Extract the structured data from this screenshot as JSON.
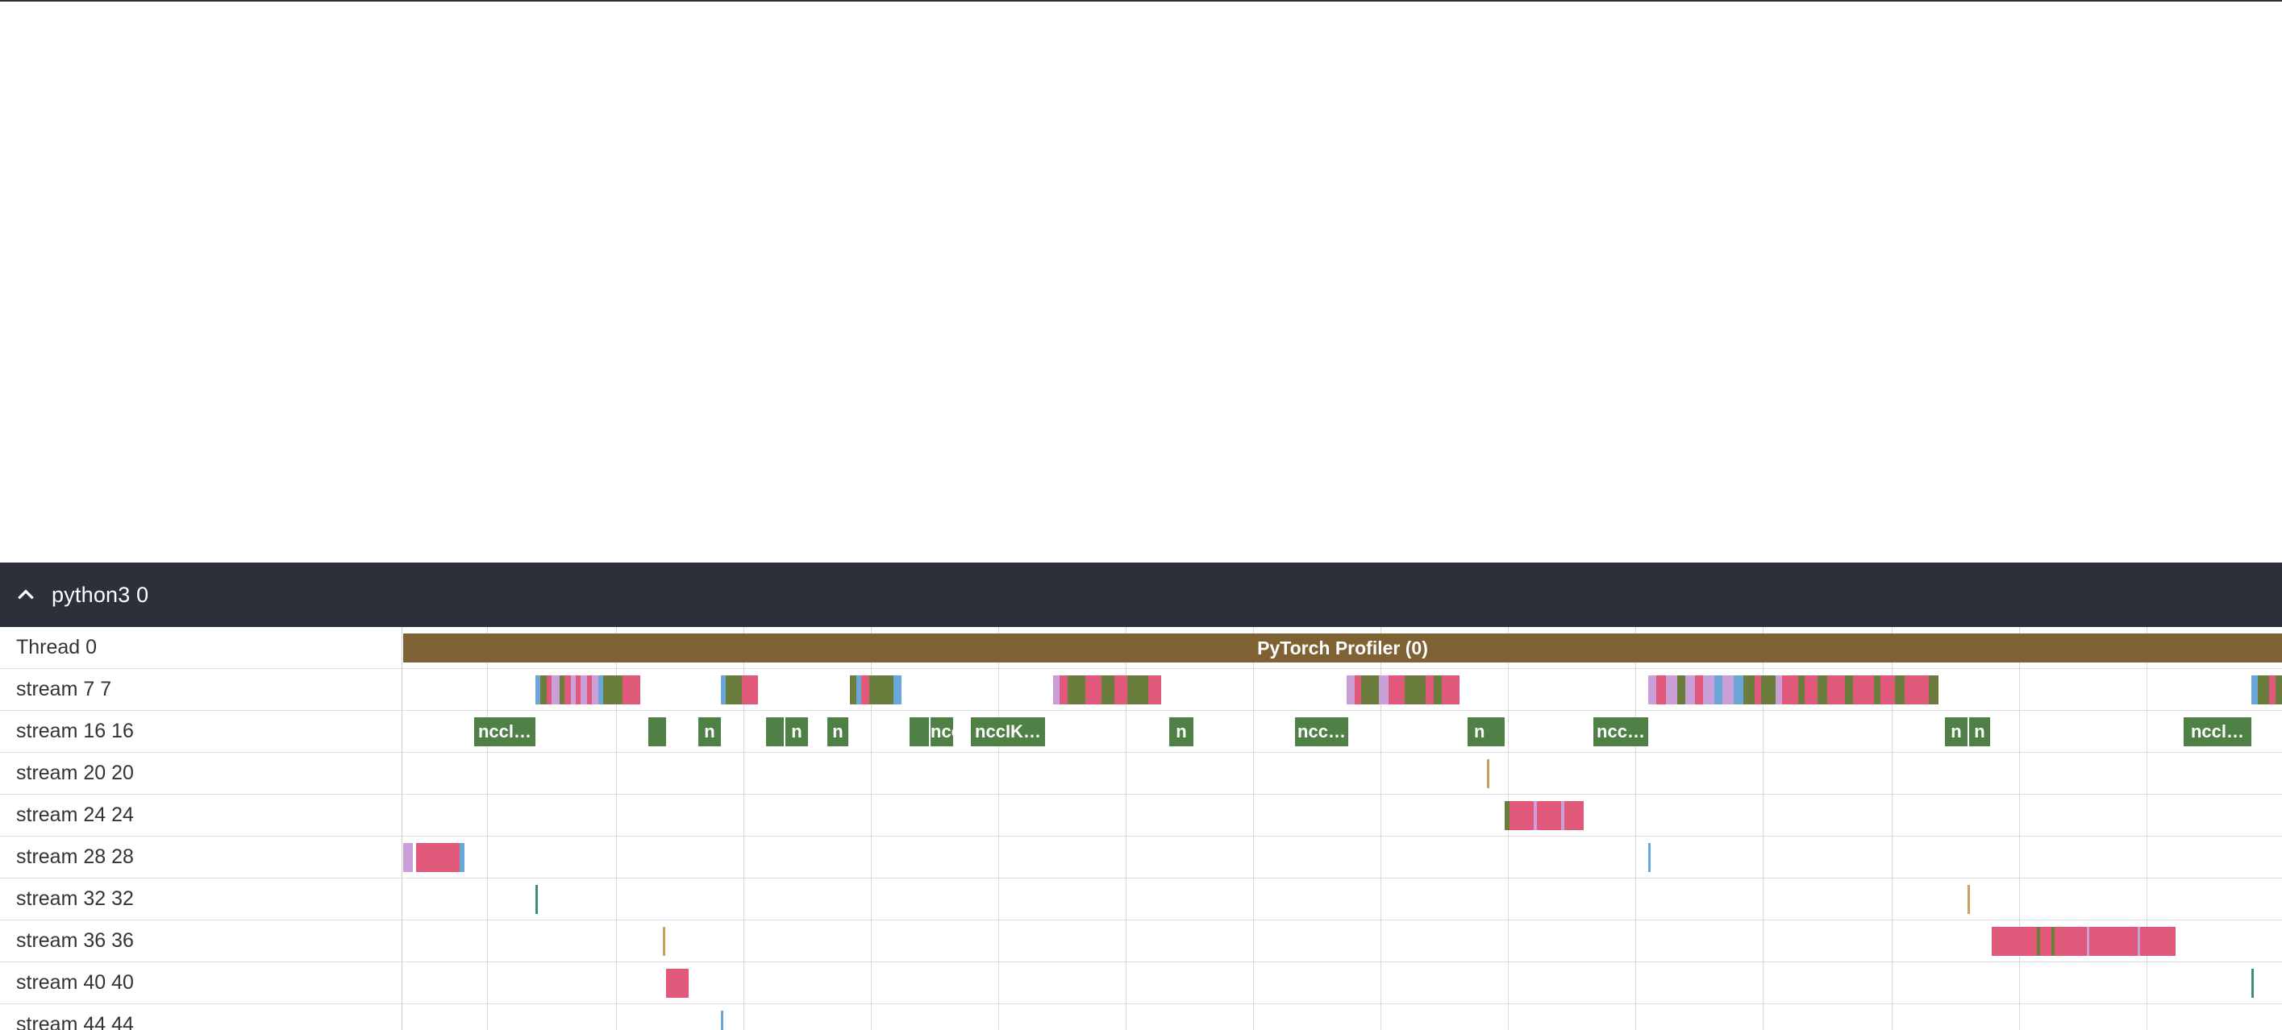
{
  "process": {
    "title": "python3 0",
    "collapse_icon": "chevron-up-icon"
  },
  "colors": {
    "header_bg": "#2b303b",
    "profiler": "#7e6234",
    "nccl_green": "#4f8146",
    "pink": "#e0587a",
    "olive": "#6a7d3c",
    "blue": "#6aa7d8",
    "violet": "#c99fd8",
    "teal": "#3d8e7a",
    "tan": "#c9a15a"
  },
  "tracks": [
    {
      "id": "thread-0",
      "label": "Thread 0"
    },
    {
      "id": "stream-7",
      "label": "stream 7 7"
    },
    {
      "id": "stream-16",
      "label": "stream 16 16"
    },
    {
      "id": "stream-20",
      "label": "stream 20 20"
    },
    {
      "id": "stream-24",
      "label": "stream 24 24"
    },
    {
      "id": "stream-28",
      "label": "stream 28 28"
    },
    {
      "id": "stream-32",
      "label": "stream 32 32"
    },
    {
      "id": "stream-36",
      "label": "stream 36 36"
    },
    {
      "id": "stream-40",
      "label": "stream 40 40"
    },
    {
      "id": "stream-44",
      "label": "stream 44 44"
    }
  ],
  "profiler_label": "PyTorch Profiler (0)",
  "nccl_labels": [
    "nccl…",
    "n",
    "n",
    "n",
    "nccIK…",
    "n",
    "ncc…",
    "n",
    "ncc…",
    "n",
    "n",
    "nccl…"
  ]
}
